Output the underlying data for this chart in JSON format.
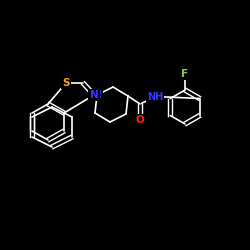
{
  "background_color": "#000000",
  "bond_color": "#ffffff",
  "atom_colors": {
    "S": "#ffa500",
    "N": "#3333ff",
    "O": "#ff2200",
    "F": "#88cc44"
  },
  "lw": 1.2
}
